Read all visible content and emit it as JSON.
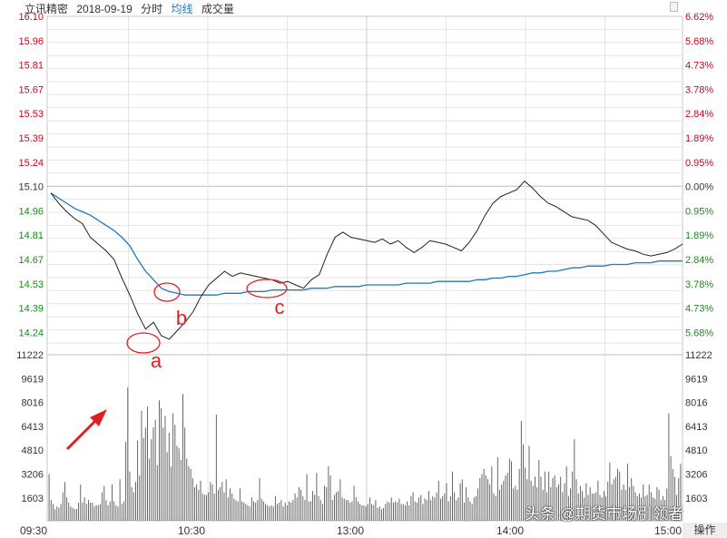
{
  "header": {
    "stock_name": "立讯精密",
    "date": "2018-09-19",
    "chart_mode": "分时",
    "avg_label": "均线",
    "volume_label": "成交量"
  },
  "price_axis_left": [
    "16.10",
    "15.96",
    "15.81",
    "15.67",
    "15.53",
    "15.39",
    "15.24",
    "15.10",
    "14.96",
    "14.81",
    "14.67",
    "14.53",
    "14.39",
    "14.24"
  ],
  "pct_axis_right": [
    "6.62%",
    "5.68%",
    "4.73%",
    "3.78%",
    "2.84%",
    "1.89%",
    "0.95%",
    "0.00%",
    "0.95%",
    "1.89%",
    "2.84%",
    "3.78%",
    "4.73%",
    "5.68%"
  ],
  "volume_axis": [
    "11222",
    "9619",
    "8016",
    "6413",
    "4810",
    "3206",
    "1603"
  ],
  "time_axis": [
    "09:30",
    "10:30",
    "13:00",
    "14:00",
    "15:00"
  ],
  "operate_label": "操作",
  "watermark": "头条 @期货市场引领者",
  "annotations": [
    "a",
    "b",
    "c"
  ],
  "colors": {
    "rise": "#d0021b",
    "fall": "#1a8a1a",
    "price_line": "#222222",
    "avg_line": "#1f7ab8",
    "annotation": "#e02020",
    "grid": "#e4e4e4"
  },
  "chart_data": [
    {
      "type": "line",
      "title": "",
      "x_label": "",
      "y_label": "",
      "ylim": [
        14.1,
        16.1
      ],
      "prev_close": 15.1,
      "x": [
        "09:30",
        "09:33",
        "09:36",
        "09:39",
        "09:42",
        "09:45",
        "09:48",
        "09:51",
        "09:54",
        "09:57",
        "10:00",
        "10:03",
        "10:06",
        "10:09",
        "10:12",
        "10:15",
        "10:18",
        "10:21",
        "10:24",
        "10:27",
        "10:30",
        "10:33",
        "10:36",
        "10:39",
        "10:42",
        "10:45",
        "10:48",
        "10:51",
        "10:54",
        "10:57",
        "11:00",
        "11:03",
        "11:06",
        "11:09",
        "11:12",
        "11:15",
        "11:18",
        "11:21",
        "11:24",
        "11:27",
        "11:30",
        "13:03",
        "13:06",
        "13:09",
        "13:12",
        "13:15",
        "13:18",
        "13:21",
        "13:24",
        "13:27",
        "13:30",
        "13:33",
        "13:36",
        "13:39",
        "13:42",
        "13:45",
        "13:48",
        "13:51",
        "13:54",
        "13:57",
        "14:00",
        "14:03",
        "14:06",
        "14:09",
        "14:12",
        "14:15",
        "14:18",
        "14:21",
        "14:24",
        "14:27",
        "14:30",
        "14:33",
        "14:36",
        "14:39",
        "14:42",
        "14:45",
        "14:48",
        "14:51",
        "14:54",
        "14:57",
        "15:00"
      ],
      "series": [
        {
          "values": [
            15.06,
            15.0,
            14.95,
            14.91,
            14.88,
            14.8,
            14.76,
            14.72,
            14.67,
            14.56,
            14.46,
            14.35,
            14.26,
            14.3,
            14.22,
            14.2,
            14.25,
            14.3,
            14.36,
            14.45,
            14.52,
            14.56,
            14.6,
            14.57,
            14.59,
            14.58,
            14.57,
            14.56,
            14.55,
            14.53,
            14.54,
            14.52,
            14.5,
            14.55,
            14.58,
            14.7,
            14.8,
            14.83,
            14.8,
            14.79,
            14.78,
            14.77,
            14.79,
            14.76,
            14.78,
            14.74,
            14.71,
            14.74,
            14.78,
            14.77,
            14.76,
            14.74,
            14.72,
            14.77,
            14.84,
            14.93,
            15.0,
            15.04,
            15.06,
            15.08,
            15.13,
            15.09,
            15.04,
            15.0,
            14.98,
            14.95,
            14.92,
            14.91,
            14.9,
            14.87,
            14.82,
            14.77,
            14.75,
            14.73,
            14.72,
            14.7,
            14.69,
            14.7,
            14.71,
            14.73,
            14.76
          ]
        },
        {
          "values": [
            15.06,
            15.03,
            15.0,
            14.97,
            14.95,
            14.93,
            14.9,
            14.87,
            14.84,
            14.8,
            14.75,
            14.67,
            14.6,
            14.55,
            14.5,
            14.48,
            14.47,
            14.46,
            14.46,
            14.46,
            14.46,
            14.46,
            14.47,
            14.47,
            14.47,
            14.48,
            14.48,
            14.48,
            14.49,
            14.49,
            14.49,
            14.49,
            14.49,
            14.5,
            14.5,
            14.5,
            14.51,
            14.51,
            14.51,
            14.51,
            14.52,
            14.52,
            14.52,
            14.52,
            14.52,
            14.53,
            14.53,
            14.53,
            14.53,
            14.54,
            14.54,
            14.54,
            14.54,
            14.54,
            14.55,
            14.55,
            14.56,
            14.56,
            14.57,
            14.57,
            14.58,
            14.59,
            14.59,
            14.6,
            14.6,
            14.61,
            14.62,
            14.62,
            14.63,
            14.63,
            14.63,
            14.64,
            14.64,
            14.64,
            14.65,
            14.65,
            14.65,
            14.66,
            14.66,
            14.66,
            14.66
          ]
        }
      ]
    },
    {
      "type": "bar",
      "title": "",
      "ylim": [
        0,
        12825
      ],
      "values": [
        3600,
        1600,
        1300,
        900,
        1100,
        1000,
        1300,
        2200,
        3000,
        1800,
        1400,
        1100,
        1000,
        900,
        900,
        1400,
        2800,
        1400,
        1800,
        1300,
        1600,
        1400,
        1400,
        1100,
        1200,
        1200,
        1300,
        2200,
        2700,
        1600,
        1200,
        1500,
        2800,
        1500,
        1200,
        1100,
        3200,
        1300,
        1500,
        6100,
        10300,
        3800,
        2600,
        2200,
        3000,
        6200,
        3500,
        8500,
        6400,
        7200,
        8800,
        4800,
        6300,
        7200,
        7800,
        4300,
        9300,
        8700,
        7200,
        8100,
        5300,
        6800,
        4200,
        8300,
        7400,
        5800,
        5600,
        4700,
        9800,
        7200,
        4800,
        4200,
        4000,
        3300,
        2600,
        2800,
        2400,
        3100,
        2100,
        2000,
        2000,
        2200,
        3000,
        2800,
        2100,
        8200,
        2400,
        2600,
        3000,
        2200,
        3200,
        1800,
        2500,
        2100,
        1700,
        1600,
        1500,
        2500,
        1500,
        1400,
        1300,
        1200,
        1100,
        1800,
        1500,
        1400,
        1600,
        3300,
        1700,
        1500,
        1300,
        1200,
        1100,
        1200,
        1100,
        1900,
        1300,
        1400,
        1600,
        1100,
        1400,
        1200,
        1500,
        1400,
        1600,
        2100,
        1800,
        2600,
        2400,
        1900,
        1600,
        3600,
        1500,
        1500,
        2300,
        2000,
        3700,
        1900,
        1600,
        1300,
        2700,
        2600,
        4200,
        3500,
        1600,
        2000,
        2200,
        2300,
        3200,
        1800,
        1700,
        1600,
        1600,
        1400,
        1500,
        2700,
        1800,
        1500,
        1300,
        1200,
        1200,
        1100,
        1300,
        1800,
        1300,
        1200,
        1600,
        1000,
        1100,
        900,
        1000,
        1300,
        1500,
        1400,
        1800,
        1400,
        1500,
        1400,
        1700,
        1300,
        1300,
        1200,
        1500,
        1200,
        1900,
        2200,
        1500,
        1400,
        1800,
        2000,
        1300,
        1700,
        1600,
        2300,
        1600,
        1900,
        1800,
        2200,
        3100,
        1700,
        1900,
        2100,
        2900,
        1500,
        1900,
        3800,
        2200,
        1600,
        1800,
        2900,
        3200,
        1400,
        2600,
        1800,
        1500,
        1300,
        1800,
        1900,
        2500,
        3300,
        3600,
        4000,
        3500,
        3200,
        2800,
        4200,
        2100,
        1900,
        4900,
        2400,
        2800,
        3100,
        3500,
        3700,
        4800,
        4600,
        2500,
        2700,
        2400,
        4000,
        7700,
        5900,
        4100,
        3200,
        5800,
        3100,
        2700,
        3400,
        2600,
        4700,
        3400,
        2400,
        3800,
        2200,
        3800,
        2600,
        3300,
        3500,
        2600,
        2800,
        3400,
        2200,
        2900,
        4200,
        1900,
        2500,
        3800,
        6300,
        3200,
        2100,
        2700,
        2300,
        1800,
        2900,
        2000,
        2600,
        2100,
        2100,
        2200,
        3100,
        2000,
        1800,
        2300,
        1900,
        3000,
        4500,
        2800,
        3200,
        3400,
        4000,
        3800,
        2400,
        2800,
        2400,
        4400,
        2600,
        3300,
        2700,
        2200,
        1900,
        2100,
        1800,
        2800,
        1900,
        2000,
        2800,
        2200,
        1800,
        1700,
        2600,
        2400,
        1600,
        1900,
        1600,
        2500,
        8300,
        5000,
        4000,
        3400,
        2000,
        3300,
        4400
      ]
    }
  ]
}
